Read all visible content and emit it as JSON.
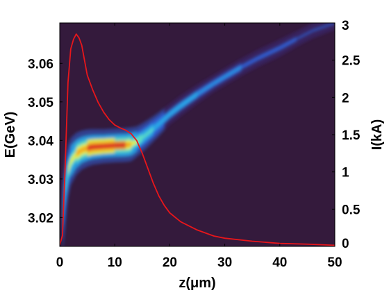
{
  "chart_data": {
    "type": "heatmap",
    "title": "",
    "xlabel": "z(μm)",
    "ylabel_left": "E(GeV)",
    "ylabel_right": "I(kA)",
    "xlim": [
      0,
      50
    ],
    "ylim_left": [
      3.0125,
      3.0705
    ],
    "ylim_right": [
      0,
      3
    ],
    "x_ticks": [
      0,
      10,
      20,
      30,
      40,
      50
    ],
    "y_left_ticks": [
      3.02,
      3.03,
      3.04,
      3.05,
      3.06
    ],
    "y_right_ticks": [
      0,
      0.5,
      1,
      1.5,
      2,
      2.5,
      3
    ],
    "x_tick_labels": [
      "0",
      "10",
      "20",
      "30",
      "40",
      "50"
    ],
    "y_left_tick_labels": [
      "3.02",
      "3.03",
      "3.04",
      "3.05",
      "3.06"
    ],
    "y_right_tick_labels": [
      "0",
      "0.5",
      "1",
      "1.5",
      "2",
      "2.5",
      "3"
    ],
    "grid": false,
    "colors": {
      "background": "#341a3c",
      "current": "#e8161b",
      "density_colormap": [
        "#3b2a7a",
        "#2f5fd4",
        "#29a8e8",
        "#5fe2c0",
        "#f7f132",
        "#f7a21c",
        "#d92222"
      ]
    },
    "series": [
      {
        "name": "I(kA)",
        "axis": "right",
        "type": "line",
        "x": [
          0,
          0.5,
          1,
          1.5,
          2,
          2.5,
          3,
          3.5,
          4,
          4.5,
          5,
          6,
          7,
          8,
          9,
          10,
          11,
          12,
          13,
          14,
          15,
          16,
          17,
          18,
          19,
          20,
          22,
          25,
          28,
          30,
          35,
          40,
          45,
          50
        ],
        "y": [
          0.02,
          0.15,
          1.1,
          2.2,
          2.65,
          2.78,
          2.85,
          2.8,
          2.7,
          2.5,
          2.3,
          2.1,
          1.93,
          1.8,
          1.7,
          1.63,
          1.59,
          1.56,
          1.51,
          1.42,
          1.25,
          1.05,
          0.85,
          0.68,
          0.55,
          0.45,
          0.33,
          0.22,
          0.14,
          0.11,
          0.07,
          0.04,
          0.03,
          0.015
        ]
      },
      {
        "name": "E(GeV)",
        "axis": "left",
        "type": "density",
        "x": [
          0.5,
          1,
          1.5,
          2,
          3,
          4,
          5,
          6,
          8,
          10,
          12,
          13,
          14,
          15,
          16,
          17,
          18,
          19,
          20,
          22,
          25,
          28,
          30,
          33,
          36,
          40,
          43,
          46,
          50
        ],
        "y": [
          3.019,
          3.027,
          3.032,
          3.0345,
          3.0365,
          3.0375,
          3.038,
          3.0383,
          3.0385,
          3.0387,
          3.0388,
          3.039,
          3.0397,
          3.0407,
          3.0418,
          3.043,
          3.0442,
          3.0455,
          3.0468,
          3.049,
          3.052,
          3.0548,
          3.0565,
          3.059,
          3.0613,
          3.064,
          3.0663,
          3.0685,
          3.0705
        ],
        "spread": [
          0.004,
          0.004,
          0.0032,
          0.0028,
          0.0025,
          0.0023,
          0.0022,
          0.0021,
          0.002,
          0.002,
          0.002,
          0.002,
          0.0018,
          0.0017,
          0.0016,
          0.0015,
          0.0014,
          0.0013,
          0.0012,
          0.0012,
          0.0011,
          0.001,
          0.001,
          0.001,
          0.001,
          0.001,
          0.0009,
          0.0009,
          0.0008
        ],
        "intensity": [
          0.35,
          0.45,
          0.55,
          0.62,
          0.75,
          0.85,
          0.95,
          1.0,
          1.0,
          0.98,
          0.9,
          0.7,
          0.55,
          0.5,
          0.45,
          0.42,
          0.4,
          0.38,
          0.36,
          0.34,
          0.3,
          0.28,
          0.26,
          0.24,
          0.22,
          0.2,
          0.18,
          0.17,
          0.15
        ]
      }
    ]
  }
}
